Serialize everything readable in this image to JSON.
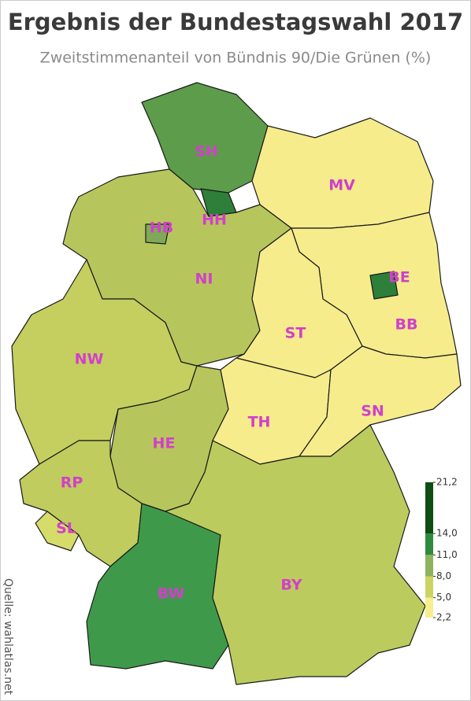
{
  "title": "Ergebnis der Bundestagswahl 2017",
  "subtitle": "Zweitstimmenanteil von Bündnis 90/Die Grünen (%)",
  "source": "Quelle: wahlatlas.net",
  "legend": {
    "ylim": [
      2.2,
      21.2
    ],
    "ticks": [
      {
        "value": 2.2,
        "label": "2,2"
      },
      {
        "value": 5.0,
        "label": "5,0"
      },
      {
        "value": 8.0,
        "label": "8,0"
      },
      {
        "value": 11.0,
        "label": "11,0"
      },
      {
        "value": 14.0,
        "label": "14,0"
      },
      {
        "value": 21.2,
        "label": "21,2"
      }
    ],
    "colors": [
      "#f8ee8e",
      "#cbd463",
      "#8db45c",
      "#2f8a3f",
      "#0f4d14"
    ]
  },
  "states": [
    {
      "label": "SH"
    },
    {
      "label": "HH"
    },
    {
      "label": "HB"
    },
    {
      "label": "NI"
    },
    {
      "label": "MV"
    },
    {
      "label": "BE"
    },
    {
      "label": "BB"
    },
    {
      "label": "ST"
    },
    {
      "label": "NW"
    },
    {
      "label": "SN"
    },
    {
      "label": "TH"
    },
    {
      "label": "HE"
    },
    {
      "label": "RP"
    },
    {
      "label": "SL"
    },
    {
      "label": "BW"
    },
    {
      "label": "BY"
    }
  ]
}
